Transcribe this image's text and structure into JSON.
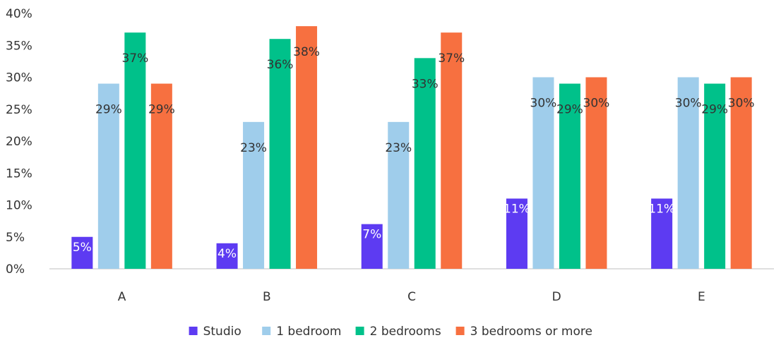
{
  "chart_data": {
    "type": "bar",
    "categories": [
      "A",
      "B",
      "C",
      "D",
      "E"
    ],
    "series": [
      {
        "name": "Studio",
        "color": "#5d3bf2",
        "values": [
          5,
          4,
          7,
          11,
          11
        ]
      },
      {
        "name": "1 bedroom",
        "color": "#9fcdeb",
        "values": [
          29,
          23,
          23,
          30,
          30
        ]
      },
      {
        "name": "2 bedrooms",
        "color": "#00c18a",
        "values": [
          37,
          36,
          33,
          29,
          29
        ]
      },
      {
        "name": "3 bedrooms or more",
        "color": "#f77040",
        "values": [
          29,
          38,
          37,
          30,
          30
        ]
      }
    ],
    "value_suffix": "%",
    "yticks": [
      "0%",
      "5%",
      "10%",
      "15%",
      "20%",
      "25%",
      "30%",
      "35%",
      "40%"
    ],
    "ylim": [
      0,
      40
    ],
    "grid": false,
    "legend_position": "bottom"
  }
}
